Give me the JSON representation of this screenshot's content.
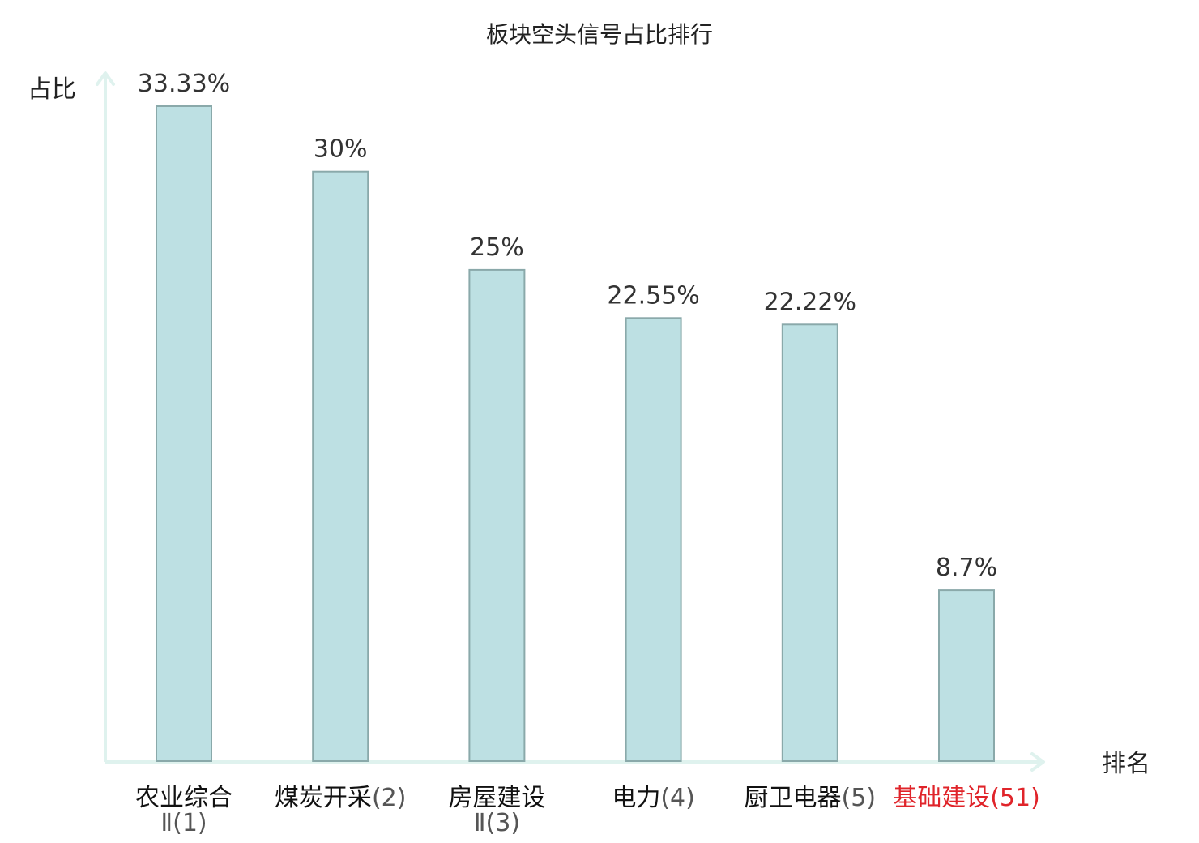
{
  "chart_data": {
    "type": "bar",
    "title": "板块空头信号占比排行",
    "ylabel": "占比",
    "xlabel": "排名",
    "ylim": [
      0,
      35
    ],
    "grid": false,
    "legend": "none",
    "categories": [
      {
        "name": "农业综合",
        "rank_text": "Ⅱ(1)",
        "highlight": false
      },
      {
        "name": "煤炭开采",
        "rank_text": "(2)",
        "highlight": false
      },
      {
        "name": "房屋建设",
        "rank_text": "Ⅱ(3)",
        "highlight": false
      },
      {
        "name": "电力",
        "rank_text": "(4)",
        "highlight": false
      },
      {
        "name": "厨卫电器",
        "rank_text": "(5)",
        "highlight": false
      },
      {
        "name": "基础建设",
        "rank_text": "(51)",
        "highlight": true
      }
    ],
    "values": [
      33.33,
      30,
      25,
      22.55,
      22.22,
      8.7
    ],
    "value_labels": [
      "33.33%",
      "30%",
      "25%",
      "22.55%",
      "22.22%",
      "8.7%"
    ]
  },
  "colors": {
    "bar_fill": "#bde0e3",
    "bar_stroke": "#8aa9aa",
    "axis": "#dff2ee",
    "text": "#333333",
    "category_name": "#111111",
    "category_number": "#555555",
    "highlight": "#e0242a"
  }
}
